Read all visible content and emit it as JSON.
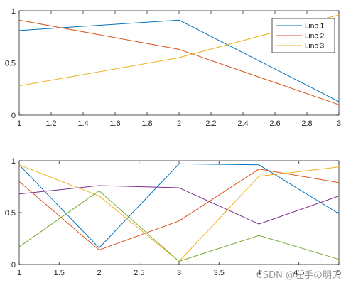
{
  "chart_data": [
    {
      "type": "line",
      "title": "",
      "xlabel": "",
      "ylabel": "",
      "xlim": [
        1,
        3
      ],
      "ylim": [
        0,
        1
      ],
      "xticks": [
        1,
        1.2,
        1.4,
        1.6,
        1.8,
        2,
        2.2,
        2.4,
        2.6,
        2.8,
        3
      ],
      "yticks": [
        0,
        0.5,
        1
      ],
      "grid": false,
      "legend": "top-right",
      "x": [
        1,
        2,
        3
      ],
      "series": [
        {
          "name": "Line 1",
          "color": "#0072BD",
          "values": [
            0.81,
            0.91,
            0.13
          ]
        },
        {
          "name": "Line 2",
          "color": "#D95319",
          "values": [
            0.91,
            0.63,
            0.1
          ]
        },
        {
          "name": "Line 3",
          "color": "#EDB120",
          "values": [
            0.28,
            0.55,
            0.96
          ]
        }
      ]
    },
    {
      "type": "line",
      "title": "",
      "xlabel": "",
      "ylabel": "",
      "xlim": [
        1,
        5
      ],
      "ylim": [
        0,
        1
      ],
      "xticks": [
        1,
        1.5,
        2,
        2.5,
        3,
        3.5,
        4,
        4.5,
        5
      ],
      "yticks": [
        0,
        0.5,
        1
      ],
      "grid": false,
      "legend": "none",
      "x": [
        1,
        2,
        3,
        4,
        5
      ],
      "series": [
        {
          "color": "#0072BD",
          "values": [
            0.96,
            0.16,
            0.97,
            0.96,
            0.49
          ]
        },
        {
          "color": "#D95319",
          "values": [
            0.8,
            0.14,
            0.42,
            0.92,
            0.79
          ]
        },
        {
          "color": "#EDB120",
          "values": [
            0.96,
            0.66,
            0.03,
            0.85,
            0.94
          ]
        },
        {
          "color": "#7E2F8E",
          "values": [
            0.68,
            0.76,
            0.74,
            0.39,
            0.66
          ]
        },
        {
          "color": "#77AC30",
          "values": [
            0.17,
            0.71,
            0.03,
            0.28,
            0.05
          ]
        }
      ]
    }
  ],
  "watermark": "CSDN @左手の明天"
}
